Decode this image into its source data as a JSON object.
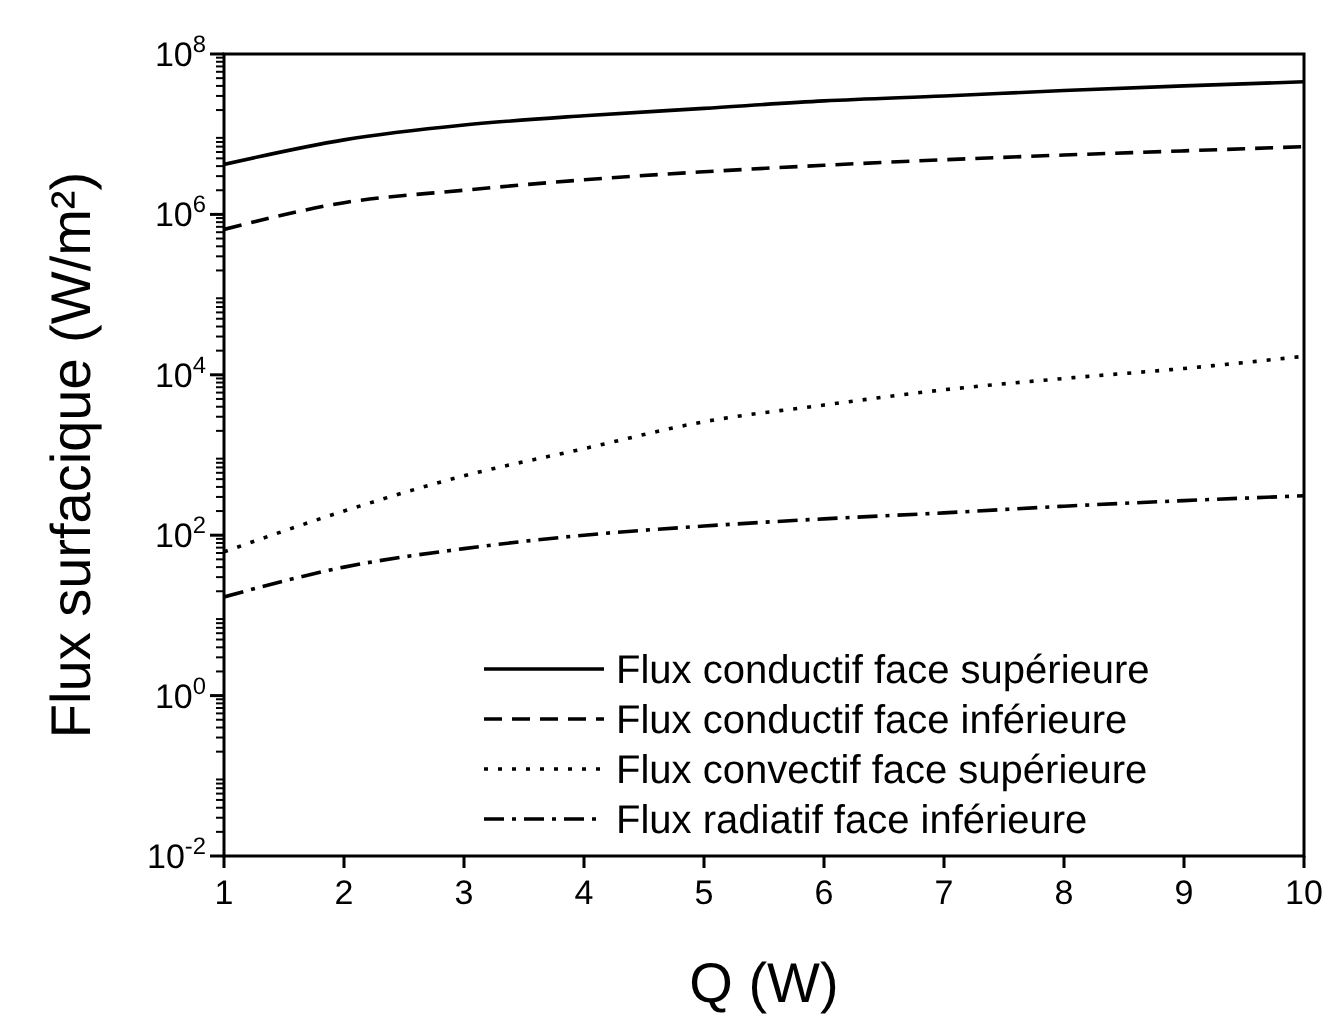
{
  "chart_data": {
    "type": "line",
    "xlabel": "Q (W)",
    "ylabel": "Flux surfacique (W/m²)",
    "log": "y",
    "x": [
      1,
      2,
      3,
      4,
      5,
      6,
      7,
      8,
      9,
      10
    ],
    "xlim": [
      1,
      10
    ],
    "xticks": [
      1,
      2,
      3,
      4,
      5,
      6,
      7,
      8,
      9,
      10
    ],
    "ylim": [
      0.01,
      100000000
    ],
    "yticks": [
      {
        "value": 0.01,
        "label": "10$^{-2}$"
      },
      {
        "value": 1,
        "label": "10$^{0}$"
      },
      {
        "value": 100,
        "label": "10$^{2}$"
      },
      {
        "value": 10000,
        "label": "10$^{4}$"
      },
      {
        "value": 1000000,
        "label": "10$^{6}$"
      },
      {
        "value": 100000000,
        "label": "10$^{8}$"
      }
    ],
    "grid": false,
    "legend": "bottom right",
    "marker": "none",
    "series": [
      {
        "name": "Flux conductif face supérieure",
        "color": "#000000",
        "line_style": "solid",
        "values": [
          4200000,
          8500000,
          13000000,
          17000000,
          21000000,
          26000000,
          30000000,
          35000000,
          40000000,
          45000000
        ]
      },
      {
        "name": "Flux conductif face inférieure",
        "color": "#000000",
        "line_style": "dashed",
        "values": [
          650000,
          1400000,
          2000000,
          2700000,
          3400000,
          4100000,
          4800000,
          5500000,
          6200000,
          7000000
        ]
      },
      {
        "name": "Flux convectif face supérieure",
        "color": "#000000",
        "line_style": "dotted",
        "values": [
          62,
          200,
          550,
          1200,
          2600,
          4200,
          6500,
          9000,
          12000,
          17000
        ]
      },
      {
        "name": "Flux radiatif face inférieure",
        "color": "#000000",
        "line_style": "dashdot",
        "values": [
          17,
          40,
          68,
          100,
          130,
          160,
          190,
          230,
          270,
          310
        ]
      }
    ]
  }
}
